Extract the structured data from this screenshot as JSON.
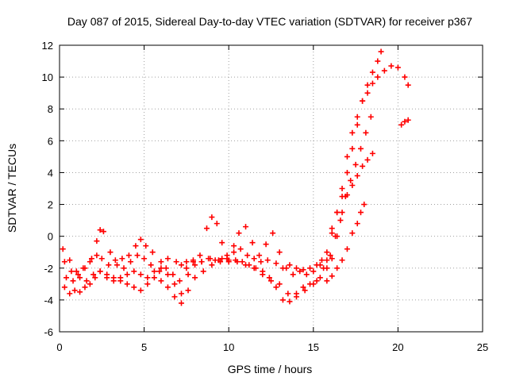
{
  "chart_data": {
    "type": "scatter",
    "title": "Day 087 of 2015, Sidereal Day-to-day VTEC variation (SDTVAR) for receiver p367",
    "xlabel": "GPS time / hours",
    "ylabel": "SDTVAR / TECUs",
    "xlim": [
      0,
      25
    ],
    "ylim": [
      -6,
      12
    ],
    "xticks": [
      0,
      5,
      10,
      15,
      20,
      25
    ],
    "yticks": [
      -6,
      -4,
      -2,
      0,
      2,
      4,
      6,
      8,
      10,
      12
    ],
    "grid": true,
    "marker": "+",
    "color": "#ff0000",
    "series": [
      {
        "x": [
          0.2,
          0.6,
          1.0,
          1.4,
          1.8,
          2.2,
          2.5,
          2.9,
          3.3,
          3.7,
          4.1,
          4.5,
          4.8,
          5.1,
          5.5,
          6.0,
          6.4,
          6.9,
          7.2,
          7.5,
          7.9,
          8.4,
          8.9,
          9.4,
          9.9,
          10.3,
          10.7,
          11.1,
          11.5,
          11.9,
          12.3,
          12.8,
          13.2,
          13.6,
          14.0,
          14.4,
          14.8,
          15.2,
          15.5,
          15.8,
          16.1,
          16.4,
          16.7,
          17.0,
          17.3,
          17.6,
          17.9,
          18.2,
          18.5,
          18.8,
          19.0
        ],
        "y": [
          -0.8,
          -1.5,
          -2.2,
          -2.0,
          -1.6,
          -1.2,
          -1.4,
          -1.8,
          -1.5,
          -1.4,
          -1.2,
          -0.6,
          -0.2,
          -0.6,
          -1.0,
          -1.6,
          -1.4,
          -1.6,
          -1.8,
          -1.6,
          -1.5,
          -1.6,
          -1.4,
          -1.5,
          -1.4,
          -1.0,
          -0.8,
          -1.2,
          -1.4,
          -1.6,
          -1.5,
          -1.7,
          -2.0,
          -1.8,
          -2.0,
          -2.1,
          -2.0,
          -1.8,
          -1.5,
          -1.0,
          0.5,
          1.5,
          2.5,
          4.0,
          5.5,
          7.0,
          8.5,
          9.5,
          10.3,
          11.0,
          11.6
        ]
      },
      {
        "x": [
          0.3,
          0.7,
          1.1,
          1.5,
          1.9,
          2.2,
          2.4,
          2.6,
          3.0,
          3.4,
          3.8,
          4.2,
          4.6,
          5.0,
          5.4,
          5.9,
          6.3,
          6.7,
          7.1,
          7.5,
          7.9,
          8.3,
          8.7,
          9.0,
          9.3,
          9.6,
          9.9,
          10.3,
          10.6,
          11.0,
          11.4,
          11.8,
          12.2,
          12.6,
          13.0,
          13.4,
          13.8,
          14.2,
          14.6,
          15.0,
          15.4,
          15.8,
          16.1,
          16.4,
          16.7,
          17.0,
          17.3,
          17.6,
          17.9,
          18.2,
          18.5,
          18.8,
          19.2,
          19.6,
          20.0,
          20.4,
          20.6
        ],
        "y": [
          -1.6,
          -2.2,
          -2.4,
          -2.0,
          -1.4,
          -0.3,
          0.4,
          0.3,
          -1.0,
          -1.8,
          -2.0,
          -1.6,
          -1.2,
          -1.4,
          -1.8,
          -2.2,
          -2.0,
          -2.4,
          -2.8,
          -2.0,
          -1.6,
          -1.2,
          0.5,
          1.2,
          0.8,
          -0.4,
          -1.2,
          -0.6,
          0.2,
          0.6,
          -0.4,
          -1.2,
          -0.5,
          0.2,
          -1.0,
          -2.0,
          -2.4,
          -2.2,
          -2.4,
          -2.2,
          -1.8,
          -1.5,
          0.2,
          1.5,
          3.0,
          5.0,
          6.5,
          7.5,
          8.5,
          9.0,
          9.6,
          10.0,
          10.4,
          10.7,
          10.6,
          10.0,
          9.5
        ]
      },
      {
        "x": [
          0.4,
          0.8,
          1.2,
          1.6,
          2.0,
          2.4,
          2.8,
          3.2,
          3.6,
          4.0,
          4.4,
          4.8,
          5.2,
          5.6,
          6.0,
          6.4,
          6.8,
          7.2,
          7.6,
          8.0,
          8.4,
          8.8,
          9.2,
          9.6,
          10.0,
          10.4,
          10.8,
          11.2,
          11.6,
          12.0,
          12.4,
          12.8,
          13.2,
          13.6,
          14.0,
          14.4,
          14.8,
          15.2,
          15.6,
          16.0,
          16.3,
          16.6,
          16.9,
          17.2,
          17.5,
          17.8,
          18.1,
          18.4
        ],
        "y": [
          -2.6,
          -2.8,
          -2.6,
          -2.8,
          -2.4,
          -2.2,
          -2.6,
          -2.8,
          -2.6,
          -2.4,
          -2.2,
          -2.4,
          -2.6,
          -2.2,
          -2.0,
          -2.4,
          -3.0,
          -3.6,
          -2.4,
          -1.8,
          -1.6,
          -1.4,
          -1.5,
          -1.4,
          -1.6,
          -1.5,
          -1.6,
          -1.8,
          -2.0,
          -2.2,
          -2.6,
          -3.2,
          -4.0,
          -4.1,
          -3.6,
          -3.2,
          -3.0,
          -2.8,
          -2.0,
          -1.2,
          0.0,
          1.0,
          2.5,
          3.5,
          4.5,
          5.5,
          6.5,
          7.5
        ]
      },
      {
        "x": [
          0.3,
          0.6,
          0.9,
          1.2,
          1.5,
          1.8,
          2.1,
          2.4,
          2.8,
          3.2,
          3.6,
          4.0,
          4.4,
          4.8,
          5.2,
          5.6,
          6.0,
          6.4,
          6.8,
          7.2,
          7.6,
          8.0,
          8.5,
          9.0,
          9.5,
          10.0,
          10.5,
          11.0,
          11.5,
          12.0,
          12.5,
          13.0,
          13.5,
          14.0,
          14.5,
          15.0,
          15.4,
          15.8,
          16.1,
          16.4,
          16.7,
          17.0,
          17.3,
          17.6,
          17.9,
          18.2,
          18.5
        ],
        "y": [
          -3.2,
          -3.6,
          -3.4,
          -3.5,
          -3.2,
          -3.0,
          -2.6,
          -2.2,
          -2.4,
          -2.6,
          -2.8,
          -3.0,
          -3.2,
          -3.4,
          -3.0,
          -2.6,
          -2.8,
          -3.2,
          -3.8,
          -4.2,
          -3.4,
          -2.6,
          -2.2,
          -1.8,
          -1.6,
          -1.5,
          -1.6,
          -1.8,
          -2.0,
          -2.4,
          -2.8,
          -3.0,
          -3.6,
          -3.8,
          -3.4,
          -3.0,
          -2.6,
          -2.0,
          -1.4,
          0.0,
          1.5,
          2.6,
          3.2,
          3.8,
          4.4,
          4.8,
          5.2
        ]
      },
      {
        "x": [
          15.8,
          16.1,
          16.4,
          16.7,
          17.0,
          17.3,
          17.6,
          17.8,
          18.0
        ],
        "y": [
          -2.8,
          -2.5,
          -2.0,
          -1.5,
          -0.8,
          0.2,
          0.8,
          1.5,
          2.0
        ]
      },
      {
        "x": [
          20.2,
          20.4,
          20.6
        ],
        "y": [
          7.0,
          7.2,
          7.3
        ]
      }
    ]
  }
}
